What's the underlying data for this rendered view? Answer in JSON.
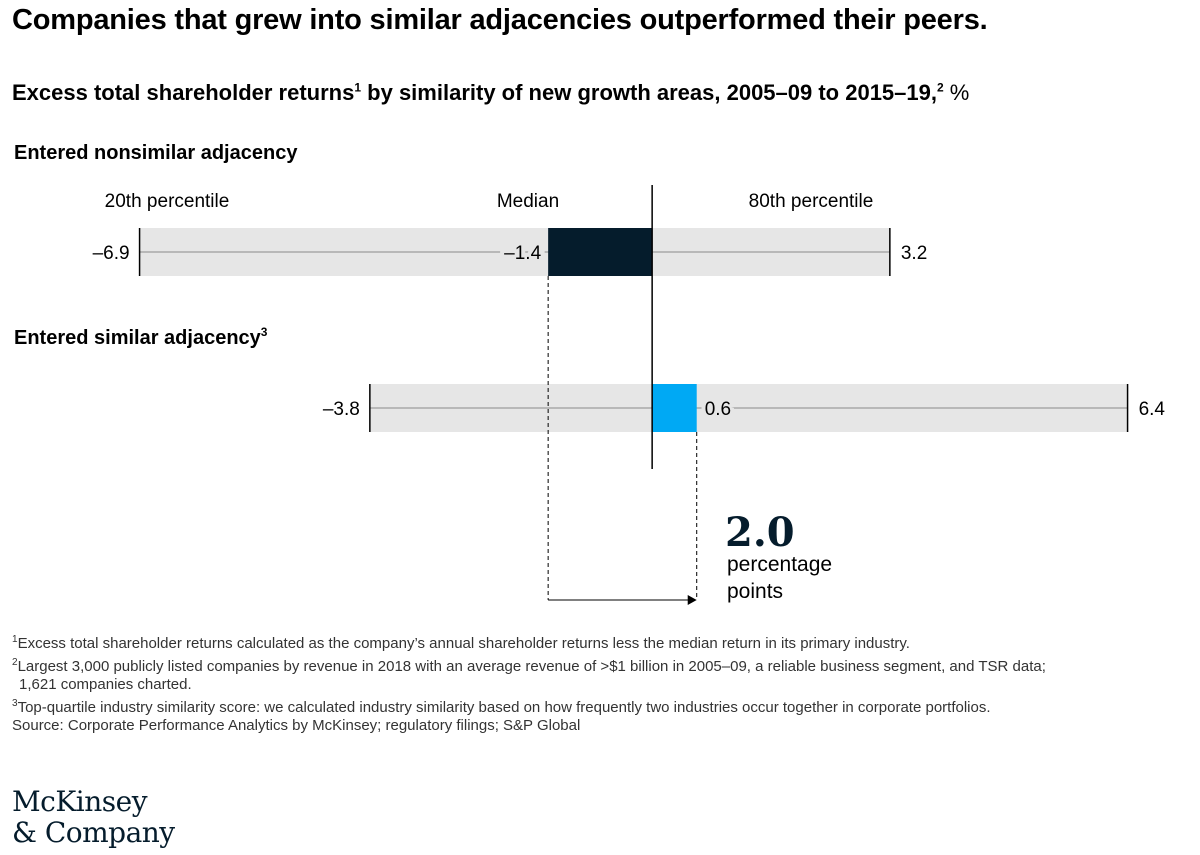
{
  "headline": "Companies that grew into similar adjacencies outperformed their peers.",
  "subtitle": {
    "main": "Excess total shareholder returns",
    "sup1": "1",
    "middle": " by similarity of new growth areas, 2005–09 to 2015–19,",
    "sup2": "2",
    "unit": " %"
  },
  "chart_data": {
    "type": "range-bar",
    "column_labels": {
      "p20": "20th percentile",
      "median": "Median",
      "p80": "80th percentile"
    },
    "reference_value": 0,
    "xlim": [
      -7.5,
      6.5
    ],
    "series": [
      {
        "name": "Entered nonsimilar adjacency",
        "name_sup": "",
        "p20": -6.9,
        "median": -1.4,
        "p80": 3.2,
        "p20_label": "–6.9",
        "median_label": "–1.4",
        "p80_label": "3.2",
        "color": "#051c2c"
      },
      {
        "name": "Entered similar adjacency",
        "name_sup": "3",
        "p20": -3.8,
        "median": 0.6,
        "p80": 6.4,
        "p20_label": "–3.8",
        "median_label": "0.6",
        "p80_label": "6.4",
        "color": "#00a9f4"
      }
    ],
    "annotation": {
      "value": "2.0",
      "line1": "percentage",
      "line2": "points"
    }
  },
  "colors": {
    "range_fill": "#e6e6e6",
    "axis_line": "#000000",
    "dark_navy": "#051c2c",
    "bright_blue": "#00a9f4"
  },
  "footnotes": [
    {
      "sup": "1",
      "text": "Excess total shareholder returns calculated as the company’s annual shareholder returns less the median return in its primary industry."
    },
    {
      "sup": "2",
      "text": "Largest 3,000 publicly listed companies by revenue in 2018 with an average revenue of >$1 billion in 2005–09, a reliable business segment, and TSR data;"
    },
    {
      "sup": "",
      "text": "1,621 companies charted."
    },
    {
      "sup": "3",
      "text": "Top-quartile industry similarity score: we calculated industry similarity based on how frequently two industries occur together in corporate portfolios."
    },
    {
      "sup": "",
      "text": "Source: Corporate Performance Analytics by McKinsey; regulatory filings; S&P Global"
    }
  ],
  "logo": {
    "line1": "McKinsey",
    "line2": "& Company"
  }
}
